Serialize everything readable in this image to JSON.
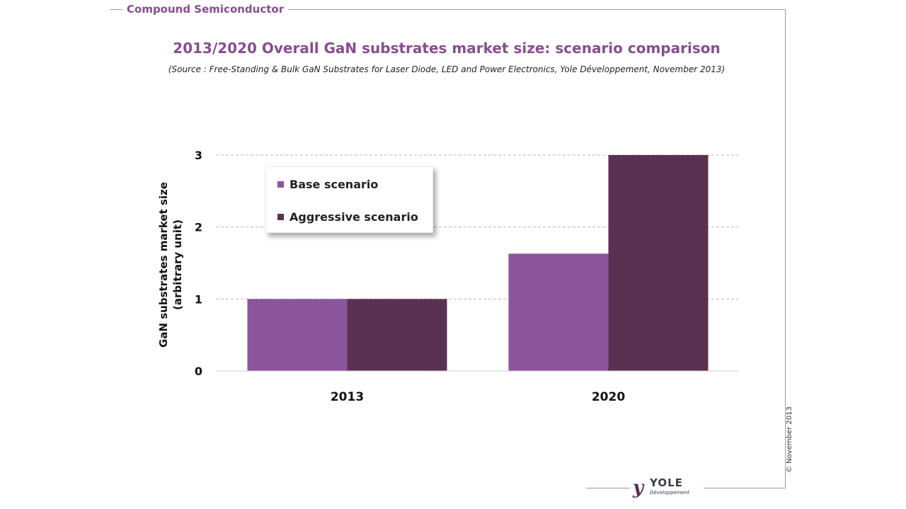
{
  "header": {
    "brand": "Compound Semiconductor"
  },
  "footer": {
    "copyright": "© November 2013",
    "logo_text": "YOLE",
    "logo_subtext": "Développement"
  },
  "chart_data": {
    "type": "bar",
    "title": "2013/2020 Overall GaN substrates market size: scenario comparison",
    "subtitle": "(Source : Free-Standing & Bulk GaN Substrates for Laser Diode, LED and Power Electronics, Yole Développement, November 2013)",
    "xlabel": "",
    "ylabel": "GaN substrates market size",
    "ylabel_sub": "(arbitrary unit)",
    "categories": [
      "2013",
      "2020"
    ],
    "series": [
      {
        "name": "Base scenario",
        "values": [
          1,
          1.63
        ],
        "color": "#8b559c"
      },
      {
        "name": "Aggressive scenario",
        "values": [
          1,
          3
        ],
        "color": "#5b3152"
      }
    ],
    "yticks": [
      "0",
      "1",
      "2",
      "3"
    ],
    "ylim": [
      0,
      3
    ],
    "grid": true,
    "legend_position": "top-left"
  }
}
